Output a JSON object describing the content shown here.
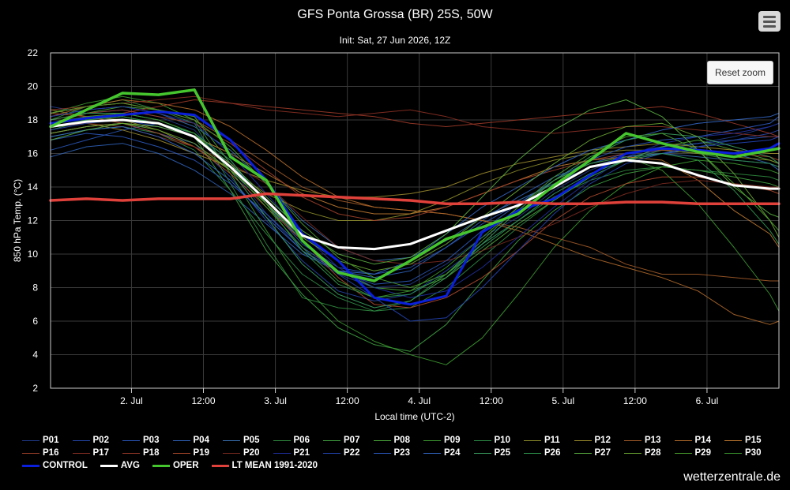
{
  "title": "GFS Ponta Grossa (BR) 25S, 50W",
  "subtitle": "Init: Sat, 27 Jun 2026, 12Z",
  "reset_zoom_label": "Reset zoom",
  "brand": "wetterzentrale.de",
  "menu_icon": "hamburger-menu-icon",
  "chart_data": {
    "type": "line",
    "title": "GFS Ponta Grossa (BR) 25S, 50W",
    "subtitle": "Init: Sat, 27 Jun 2026, 12Z",
    "xlabel": "Local time (UTC-2)",
    "ylabel": "850 hPa Temp. (°C)",
    "x_unit": "hours after 1. Jul 00:00 local",
    "xlim": [
      10.5,
      132
    ],
    "ylim": [
      2,
      22
    ],
    "yticks": [
      2,
      4,
      6,
      8,
      10,
      12,
      14,
      16,
      18,
      20,
      22
    ],
    "xticks": [
      {
        "label": "2. Jul",
        "x": 24
      },
      {
        "label": "12:00",
        "x": 36
      },
      {
        "label": "3. Jul",
        "x": 48
      },
      {
        "label": "12:00",
        "x": 60
      },
      {
        "label": "4. Jul",
        "x": 72
      },
      {
        "label": "12:00",
        "x": 84
      },
      {
        "label": "5. Jul",
        "x": 96
      },
      {
        "label": "12:00",
        "x": 108
      },
      {
        "label": "6. Jul",
        "x": 120
      }
    ],
    "grid": true,
    "legend_position": "bottom",
    "x": [
      10.5,
      16.5,
      22.5,
      28.5,
      34.5,
      40.5,
      46.5,
      52.5,
      58.5,
      64.5,
      70.5,
      76.5,
      82.5,
      88.5,
      94.5,
      100.5,
      106.5,
      112.5,
      118.5,
      124.5,
      130.5,
      132
    ],
    "series": [
      {
        "name": "CONTROL",
        "color": "#0a1fdc",
        "width": 3,
        "values": [
          17.8,
          18.1,
          18.3,
          18.5,
          18.3,
          16.8,
          14.4,
          11.2,
          9.6,
          7.4,
          7.0,
          7.5,
          11.3,
          12.6,
          13.3,
          14.7,
          16.0,
          16.3,
          16.2,
          16.0,
          16.3,
          16.6
        ]
      },
      {
        "name": "AVG",
        "color": "#ffffff",
        "width": 3,
        "values": [
          17.6,
          17.9,
          18.0,
          17.8,
          17.0,
          15.2,
          13.2,
          11.1,
          10.4,
          10.3,
          10.6,
          11.4,
          12.2,
          12.9,
          14.0,
          15.2,
          15.6,
          15.4,
          14.7,
          14.1,
          13.9,
          13.9
        ]
      },
      {
        "name": "OPER",
        "color": "#46c62e",
        "width": 3.5,
        "values": [
          17.6,
          18.6,
          19.6,
          19.5,
          19.8,
          15.8,
          14.4,
          10.8,
          8.9,
          8.4,
          9.6,
          10.9,
          11.6,
          12.4,
          14.1,
          15.6,
          17.2,
          16.6,
          16.1,
          15.8,
          16.2,
          16.3
        ]
      },
      {
        "name": "LT MEAN 1991-2020",
        "color": "#e0413a",
        "width": 3.5,
        "values": [
          13.2,
          13.3,
          13.2,
          13.3,
          13.3,
          13.3,
          13.6,
          13.5,
          13.4,
          13.3,
          13.2,
          13.0,
          13.0,
          13.1,
          13.0,
          13.0,
          13.1,
          13.1,
          13.0,
          13.0,
          13.0,
          13.0
        ]
      },
      {
        "name": "P01",
        "color": "#1f3a8a",
        "values": [
          18.8,
          18.4,
          18.6,
          18.2,
          17.4,
          15.2,
          12.4,
          10.2,
          8.8,
          8.0,
          8.2,
          9.4,
          11.0,
          12.2,
          13.8,
          15.0,
          15.8,
          16.2,
          16.6,
          17.0,
          17.6,
          17.8
        ]
      },
      {
        "name": "P02",
        "color": "#2445a8",
        "values": [
          17.2,
          17.6,
          17.8,
          17.2,
          16.6,
          14.6,
          12.0,
          9.6,
          7.8,
          7.2,
          7.6,
          9.0,
          10.6,
          12.0,
          13.6,
          14.8,
          15.6,
          16.0,
          16.4,
          16.8,
          17.2,
          17.4
        ]
      },
      {
        "name": "P03",
        "color": "#2a55b8",
        "values": [
          16.2,
          16.8,
          17.4,
          17.8,
          17.2,
          15.6,
          13.0,
          10.6,
          9.2,
          8.8,
          9.2,
          10.4,
          11.8,
          13.0,
          14.4,
          15.4,
          16.0,
          16.4,
          16.6,
          16.8,
          17.0,
          17.0
        ]
      },
      {
        "name": "P04",
        "color": "#2f62b8",
        "values": [
          15.8,
          16.4,
          16.6,
          16.0,
          15.0,
          13.6,
          11.8,
          10.0,
          9.0,
          8.6,
          9.0,
          10.4,
          12.0,
          13.4,
          14.6,
          15.4,
          15.8,
          16.0,
          16.2,
          16.0,
          15.4,
          15.0
        ]
      },
      {
        "name": "P05",
        "color": "#3a6fb0",
        "values": [
          18.2,
          18.6,
          18.8,
          18.4,
          17.6,
          16.2,
          14.2,
          12.0,
          10.4,
          9.6,
          9.8,
          10.8,
          12.2,
          13.2,
          14.2,
          15.2,
          15.8,
          16.0,
          15.8,
          15.6,
          15.4,
          15.2
        ]
      },
      {
        "name": "P06",
        "color": "#2f8a3e",
        "values": [
          18.0,
          18.8,
          19.2,
          18.6,
          17.8,
          14.2,
          10.6,
          7.4,
          6.8,
          6.6,
          7.2,
          8.8,
          10.6,
          12.0,
          13.4,
          14.4,
          15.0,
          15.2,
          15.0,
          14.8,
          14.6,
          14.4
        ]
      },
      {
        "name": "P07",
        "color": "#3ea040",
        "values": [
          17.4,
          18.0,
          18.2,
          17.8,
          17.0,
          13.8,
          10.2,
          7.6,
          5.6,
          4.6,
          4.2,
          5.8,
          8.4,
          10.8,
          12.6,
          14.0,
          14.8,
          15.2,
          15.0,
          14.6,
          14.2,
          14.0
        ]
      },
      {
        "name": "P08",
        "color": "#4aa83a",
        "values": [
          17.8,
          18.4,
          18.8,
          18.6,
          18.2,
          15.4,
          13.0,
          10.8,
          9.0,
          8.0,
          7.8,
          8.6,
          10.2,
          11.8,
          13.2,
          14.6,
          15.6,
          16.4,
          16.8,
          16.2,
          15.6,
          15.4
        ]
      },
      {
        "name": "P09",
        "color": "#3c9a30",
        "values": [
          18.4,
          19.0,
          19.4,
          19.0,
          18.0,
          14.8,
          11.4,
          8.2,
          6.0,
          4.8,
          4.0,
          3.4,
          5.0,
          7.6,
          10.4,
          12.6,
          14.2,
          15.2,
          15.6,
          15.4,
          15.0,
          14.8
        ]
      },
      {
        "name": "P10",
        "color": "#2e8c46",
        "values": [
          17.0,
          17.4,
          17.6,
          17.2,
          16.2,
          13.8,
          11.2,
          8.8,
          7.4,
          6.6,
          6.8,
          8.0,
          9.8,
          11.6,
          13.2,
          14.6,
          15.6,
          16.2,
          16.0,
          15.6,
          15.4,
          15.2
        ]
      },
      {
        "name": "P11",
        "color": "#8a8a2a",
        "values": [
          18.6,
          18.2,
          18.0,
          17.4,
          16.4,
          15.0,
          13.6,
          12.6,
          12.0,
          12.0,
          12.4,
          13.2,
          14.2,
          15.0,
          15.6,
          16.0,
          16.2,
          16.2,
          16.0,
          15.8,
          15.6,
          15.4
        ]
      },
      {
        "name": "P12",
        "color": "#9a8a2e",
        "values": [
          17.6,
          17.8,
          17.4,
          16.8,
          16.0,
          15.2,
          14.4,
          13.8,
          13.4,
          13.4,
          13.6,
          14.0,
          14.8,
          15.4,
          15.8,
          16.2,
          16.4,
          16.6,
          16.4,
          16.2,
          16.0,
          16.0
        ]
      },
      {
        "name": "P13",
        "color": "#a05a28",
        "values": [
          18.2,
          18.8,
          19.0,
          18.6,
          18.0,
          16.8,
          15.4,
          14.0,
          13.2,
          12.8,
          12.6,
          12.4,
          12.0,
          11.6,
          11.0,
          10.4,
          9.4,
          8.8,
          8.8,
          8.6,
          8.4,
          8.4
        ]
      },
      {
        "name": "P14",
        "color": "#b26a2a",
        "values": [
          18.4,
          18.8,
          19.2,
          19.0,
          18.6,
          17.6,
          16.2,
          14.6,
          13.4,
          12.8,
          12.6,
          12.4,
          12.0,
          11.4,
          10.6,
          9.8,
          9.2,
          8.6,
          7.8,
          6.4,
          5.8,
          6.0
        ]
      },
      {
        "name": "P15",
        "color": "#c07a30",
        "values": [
          17.2,
          17.6,
          17.8,
          17.6,
          17.0,
          16.0,
          14.8,
          13.6,
          12.8,
          12.4,
          12.4,
          12.8,
          13.6,
          14.4,
          15.2,
          15.6,
          15.8,
          15.6,
          14.4,
          12.6,
          11.2,
          10.4
        ]
      },
      {
        "name": "P16",
        "color": "#a0402a",
        "values": [
          18.0,
          18.4,
          18.6,
          18.2,
          17.8,
          16.6,
          15.0,
          13.4,
          12.4,
          12.0,
          12.2,
          12.8,
          13.6,
          14.4,
          15.0,
          15.6,
          16.0,
          16.2,
          16.2,
          16.0,
          15.8,
          15.6
        ]
      },
      {
        "name": "P17",
        "color": "#8a3024",
        "values": [
          18.6,
          18.8,
          19.0,
          19.2,
          19.4,
          19.0,
          18.6,
          18.4,
          18.2,
          18.4,
          18.6,
          18.2,
          17.6,
          17.4,
          17.2,
          17.4,
          17.6,
          17.6,
          17.4,
          17.2,
          17.0,
          17.0
        ]
      },
      {
        "name": "P18",
        "color": "#9c3a28",
        "values": [
          17.8,
          18.2,
          18.4,
          18.8,
          19.2,
          19.0,
          18.8,
          18.6,
          18.4,
          18.2,
          17.8,
          17.6,
          17.8,
          18.0,
          18.2,
          18.4,
          18.6,
          18.8,
          18.4,
          17.8,
          17.2,
          17.0
        ]
      },
      {
        "name": "P19",
        "color": "#b04a2c",
        "values": [
          18.4,
          18.2,
          17.8,
          17.2,
          16.4,
          14.8,
          12.8,
          10.8,
          8.6,
          7.0,
          6.8,
          7.4,
          8.6,
          10.2,
          12.0,
          13.4,
          14.2,
          14.6,
          14.6,
          14.2,
          13.8,
          13.6
        ]
      },
      {
        "name": "P20",
        "color": "#7a2a20",
        "values": [
          17.6,
          17.8,
          17.6,
          17.0,
          16.4,
          15.4,
          14.2,
          12.2,
          10.4,
          9.6,
          9.4,
          9.6,
          10.2,
          11.0,
          11.8,
          12.8,
          13.6,
          14.2,
          14.4,
          14.2,
          14.0,
          14.0
        ]
      },
      {
        "name": "P21",
        "color": "#2030a0",
        "values": [
          18.2,
          18.6,
          18.8,
          18.4,
          17.8,
          16.0,
          13.6,
          11.2,
          9.2,
          8.0,
          7.4,
          7.8,
          9.2,
          11.0,
          12.8,
          14.4,
          15.8,
          16.6,
          17.0,
          17.2,
          17.6,
          17.8
        ]
      },
      {
        "name": "P22",
        "color": "#2244b4",
        "values": [
          17.4,
          17.8,
          18.0,
          17.6,
          17.0,
          15.4,
          13.2,
          10.8,
          8.8,
          7.4,
          6.0,
          6.2,
          8.0,
          10.2,
          12.4,
          14.2,
          15.4,
          16.0,
          16.4,
          16.6,
          16.8,
          17.0
        ]
      },
      {
        "name": "P23",
        "color": "#2c5ac0",
        "values": [
          16.8,
          17.2,
          17.0,
          16.4,
          15.6,
          14.2,
          12.4,
          10.4,
          9.0,
          8.2,
          8.4,
          9.6,
          11.4,
          13.0,
          14.4,
          15.6,
          16.4,
          16.8,
          17.0,
          17.4,
          17.8,
          18.2
        ]
      },
      {
        "name": "P24",
        "color": "#3468c8",
        "values": [
          17.0,
          17.4,
          17.6,
          17.0,
          16.0,
          14.4,
          12.2,
          10.2,
          9.0,
          8.8,
          9.6,
          11.2,
          12.8,
          14.0,
          15.2,
          16.2,
          16.8,
          17.4,
          17.8,
          18.0,
          18.2,
          18.4
        ]
      },
      {
        "name": "P25",
        "color": "#3aa060",
        "values": [
          18.0,
          18.4,
          18.4,
          18.0,
          17.2,
          15.0,
          12.2,
          9.4,
          7.6,
          6.8,
          7.2,
          8.6,
          10.6,
          12.6,
          14.4,
          15.8,
          16.8,
          17.2,
          17.0,
          16.4,
          15.8,
          15.4
        ]
      },
      {
        "name": "P26",
        "color": "#2e9a50",
        "values": [
          17.6,
          18.0,
          18.2,
          17.8,
          17.2,
          15.6,
          13.0,
          10.2,
          8.2,
          7.4,
          7.6,
          8.8,
          10.4,
          12.0,
          13.6,
          14.8,
          15.6,
          16.0,
          15.6,
          13.8,
          11.4,
          10.6
        ]
      },
      {
        "name": "P27",
        "color": "#5ab040",
        "values": [
          16.8,
          17.4,
          17.8,
          17.6,
          17.0,
          15.4,
          13.4,
          11.4,
          10.0,
          9.4,
          9.8,
          11.2,
          13.4,
          15.6,
          17.4,
          18.6,
          19.2,
          18.2,
          16.2,
          14.0,
          12.4,
          12.2
        ]
      },
      {
        "name": "P28",
        "color": "#6aa834",
        "values": [
          17.2,
          17.6,
          17.8,
          17.4,
          16.6,
          15.0,
          13.0,
          11.0,
          9.6,
          9.0,
          9.4,
          10.6,
          12.2,
          13.8,
          15.4,
          16.8,
          17.6,
          17.8,
          17.0,
          14.8,
          12.0,
          11.0
        ]
      },
      {
        "name": "P29",
        "color": "#4aa030",
        "values": [
          18.4,
          18.8,
          19.0,
          18.6,
          18.0,
          16.4,
          14.2,
          11.8,
          9.8,
          8.6,
          8.0,
          8.8,
          10.8,
          12.8,
          14.6,
          16.0,
          17.0,
          17.2,
          16.2,
          14.2,
          12.0,
          11.4
        ]
      },
      {
        "name": "P30",
        "color": "#3c9830",
        "values": [
          17.8,
          18.2,
          18.4,
          18.0,
          17.2,
          15.2,
          12.8,
          10.4,
          8.4,
          7.4,
          7.8,
          9.2,
          11.0,
          12.8,
          14.4,
          15.4,
          15.8,
          15.0,
          13.0,
          10.4,
          7.6,
          6.6
        ]
      }
    ]
  }
}
